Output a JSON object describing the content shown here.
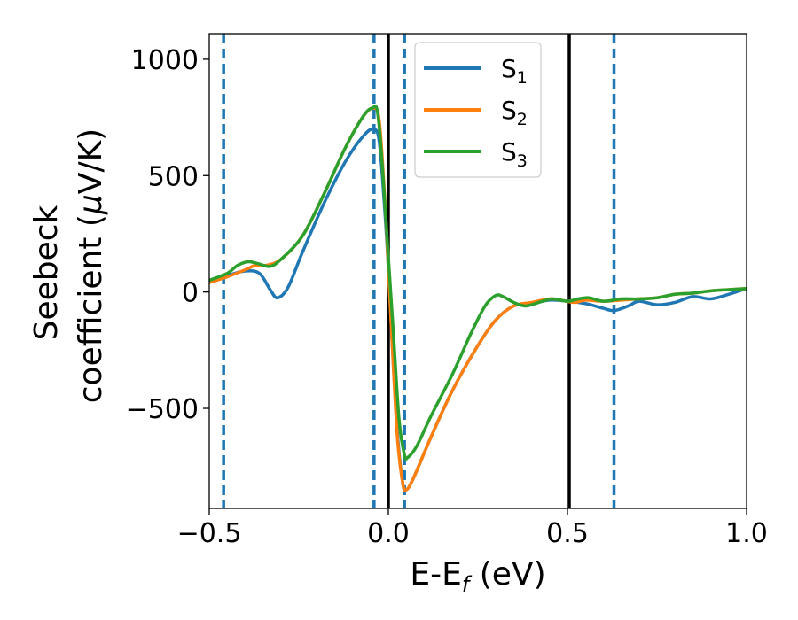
{
  "chart_data": {
    "type": "line",
    "title": "",
    "xlabel": "E-E",
    "xlabel_sub": "f",
    "xlabel_unit": " (eV)",
    "ylabel_line1": "Seebeck",
    "ylabel_line2_prefix": "coefficient  (",
    "ylabel_mu": "μ",
    "ylabel_line2_suffix": "V/K)",
    "xlim": [
      -0.5,
      1.0
    ],
    "ylim": [
      -930,
      1110
    ],
    "xticks": [
      -0.5,
      0.0,
      0.5,
      1.0
    ],
    "xtick_labels": [
      "−0.5",
      "0.0",
      "0.5",
      "1.0"
    ],
    "yticks": [
      -500,
      0,
      500,
      1000
    ],
    "ytick_labels": [
      "−500",
      "0",
      "500",
      "1000"
    ],
    "grid": false,
    "legend_position": "top-center",
    "vlines": [
      {
        "x": -0.46,
        "style": "dashed",
        "color": "#1f77b4"
      },
      {
        "x": -0.04,
        "style": "dashed",
        "color": "#1f77b4"
      },
      {
        "x": 0.045,
        "style": "dashed",
        "color": "#1f77b4"
      },
      {
        "x": 0.63,
        "style": "dashed",
        "color": "#1f77b4"
      },
      {
        "x": 0.0,
        "style": "solid",
        "color": "#000000"
      },
      {
        "x": 0.505,
        "style": "solid",
        "color": "#000000"
      }
    ],
    "series": [
      {
        "name": "S",
        "sub": "1",
        "color": "#1f77b4",
        "points": [
          [
            -0.5,
            45
          ],
          [
            -0.45,
            70
          ],
          [
            -0.4,
            90
          ],
          [
            -0.36,
            80
          ],
          [
            -0.33,
            10
          ],
          [
            -0.31,
            -25
          ],
          [
            -0.28,
            20
          ],
          [
            -0.24,
            170
          ],
          [
            -0.18,
            380
          ],
          [
            -0.12,
            560
          ],
          [
            -0.07,
            670
          ],
          [
            -0.04,
            700
          ],
          [
            -0.025,
            640
          ],
          [
            -0.01,
            350
          ],
          [
            0.0,
            100
          ],
          [
            0.01,
            -200
          ],
          [
            0.025,
            -600
          ],
          [
            0.04,
            -820
          ],
          [
            0.05,
            -850
          ],
          [
            0.07,
            -800
          ],
          [
            0.12,
            -620
          ],
          [
            0.18,
            -420
          ],
          [
            0.25,
            -230
          ],
          [
            0.3,
            -120
          ],
          [
            0.35,
            -60
          ],
          [
            0.4,
            -50
          ],
          [
            0.45,
            -35
          ],
          [
            0.5,
            -40
          ],
          [
            0.55,
            -50
          ],
          [
            0.6,
            -70
          ],
          [
            0.63,
            -80
          ],
          [
            0.67,
            -60
          ],
          [
            0.7,
            -40
          ],
          [
            0.75,
            -55
          ],
          [
            0.8,
            -45
          ],
          [
            0.85,
            -20
          ],
          [
            0.9,
            -30
          ],
          [
            0.95,
            -10
          ],
          [
            1.0,
            15
          ]
        ]
      },
      {
        "name": "S",
        "sub": "2",
        "color": "#ff7f0e",
        "points": [
          [
            -0.5,
            40
          ],
          [
            -0.45,
            65
          ],
          [
            -0.4,
            95
          ],
          [
            -0.37,
            115
          ],
          [
            -0.34,
            115
          ],
          [
            -0.3,
            140
          ],
          [
            -0.24,
            240
          ],
          [
            -0.18,
            420
          ],
          [
            -0.12,
            620
          ],
          [
            -0.07,
            755
          ],
          [
            -0.04,
            790
          ],
          [
            -0.025,
            730
          ],
          [
            -0.01,
            400
          ],
          [
            0.0,
            100
          ],
          [
            0.01,
            -200
          ],
          [
            0.025,
            -620
          ],
          [
            0.04,
            -820
          ],
          [
            0.05,
            -850
          ],
          [
            0.07,
            -800
          ],
          [
            0.12,
            -620
          ],
          [
            0.18,
            -420
          ],
          [
            0.25,
            -230
          ],
          [
            0.3,
            -120
          ],
          [
            0.35,
            -60
          ],
          [
            0.4,
            -45
          ],
          [
            0.45,
            -30
          ],
          [
            0.48,
            -35
          ],
          [
            0.52,
            -45
          ],
          [
            0.55,
            -35
          ],
          [
            0.6,
            -40
          ],
          [
            0.65,
            -35
          ],
          [
            0.7,
            -30
          ],
          [
            0.75,
            -25
          ],
          [
            0.8,
            -10
          ],
          [
            0.85,
            -5
          ],
          [
            0.9,
            5
          ],
          [
            0.95,
            10
          ],
          [
            1.0,
            15
          ]
        ]
      },
      {
        "name": "S",
        "sub": "3",
        "color": "#2ca02c",
        "points": [
          [
            -0.5,
            50
          ],
          [
            -0.45,
            80
          ],
          [
            -0.42,
            115
          ],
          [
            -0.39,
            130
          ],
          [
            -0.36,
            120
          ],
          [
            -0.33,
            110
          ],
          [
            -0.3,
            140
          ],
          [
            -0.24,
            240
          ],
          [
            -0.18,
            420
          ],
          [
            -0.12,
            620
          ],
          [
            -0.07,
            755
          ],
          [
            -0.045,
            790
          ],
          [
            -0.03,
            770
          ],
          [
            -0.015,
            500
          ],
          [
            0.0,
            150
          ],
          [
            0.015,
            -200
          ],
          [
            0.03,
            -550
          ],
          [
            0.045,
            -700
          ],
          [
            0.055,
            -710
          ],
          [
            0.08,
            -660
          ],
          [
            0.12,
            -530
          ],
          [
            0.18,
            -350
          ],
          [
            0.23,
            -180
          ],
          [
            0.27,
            -60
          ],
          [
            0.3,
            -15
          ],
          [
            0.32,
            -20
          ],
          [
            0.35,
            -45
          ],
          [
            0.38,
            -60
          ],
          [
            0.4,
            -55
          ],
          [
            0.43,
            -40
          ],
          [
            0.46,
            -30
          ],
          [
            0.5,
            -40
          ],
          [
            0.53,
            -30
          ],
          [
            0.56,
            -25
          ],
          [
            0.6,
            -40
          ],
          [
            0.65,
            -30
          ],
          [
            0.7,
            -30
          ],
          [
            0.75,
            -25
          ],
          [
            0.8,
            -10
          ],
          [
            0.85,
            -5
          ],
          [
            0.9,
            5
          ],
          [
            0.95,
            10
          ],
          [
            1.0,
            15
          ]
        ]
      }
    ]
  }
}
